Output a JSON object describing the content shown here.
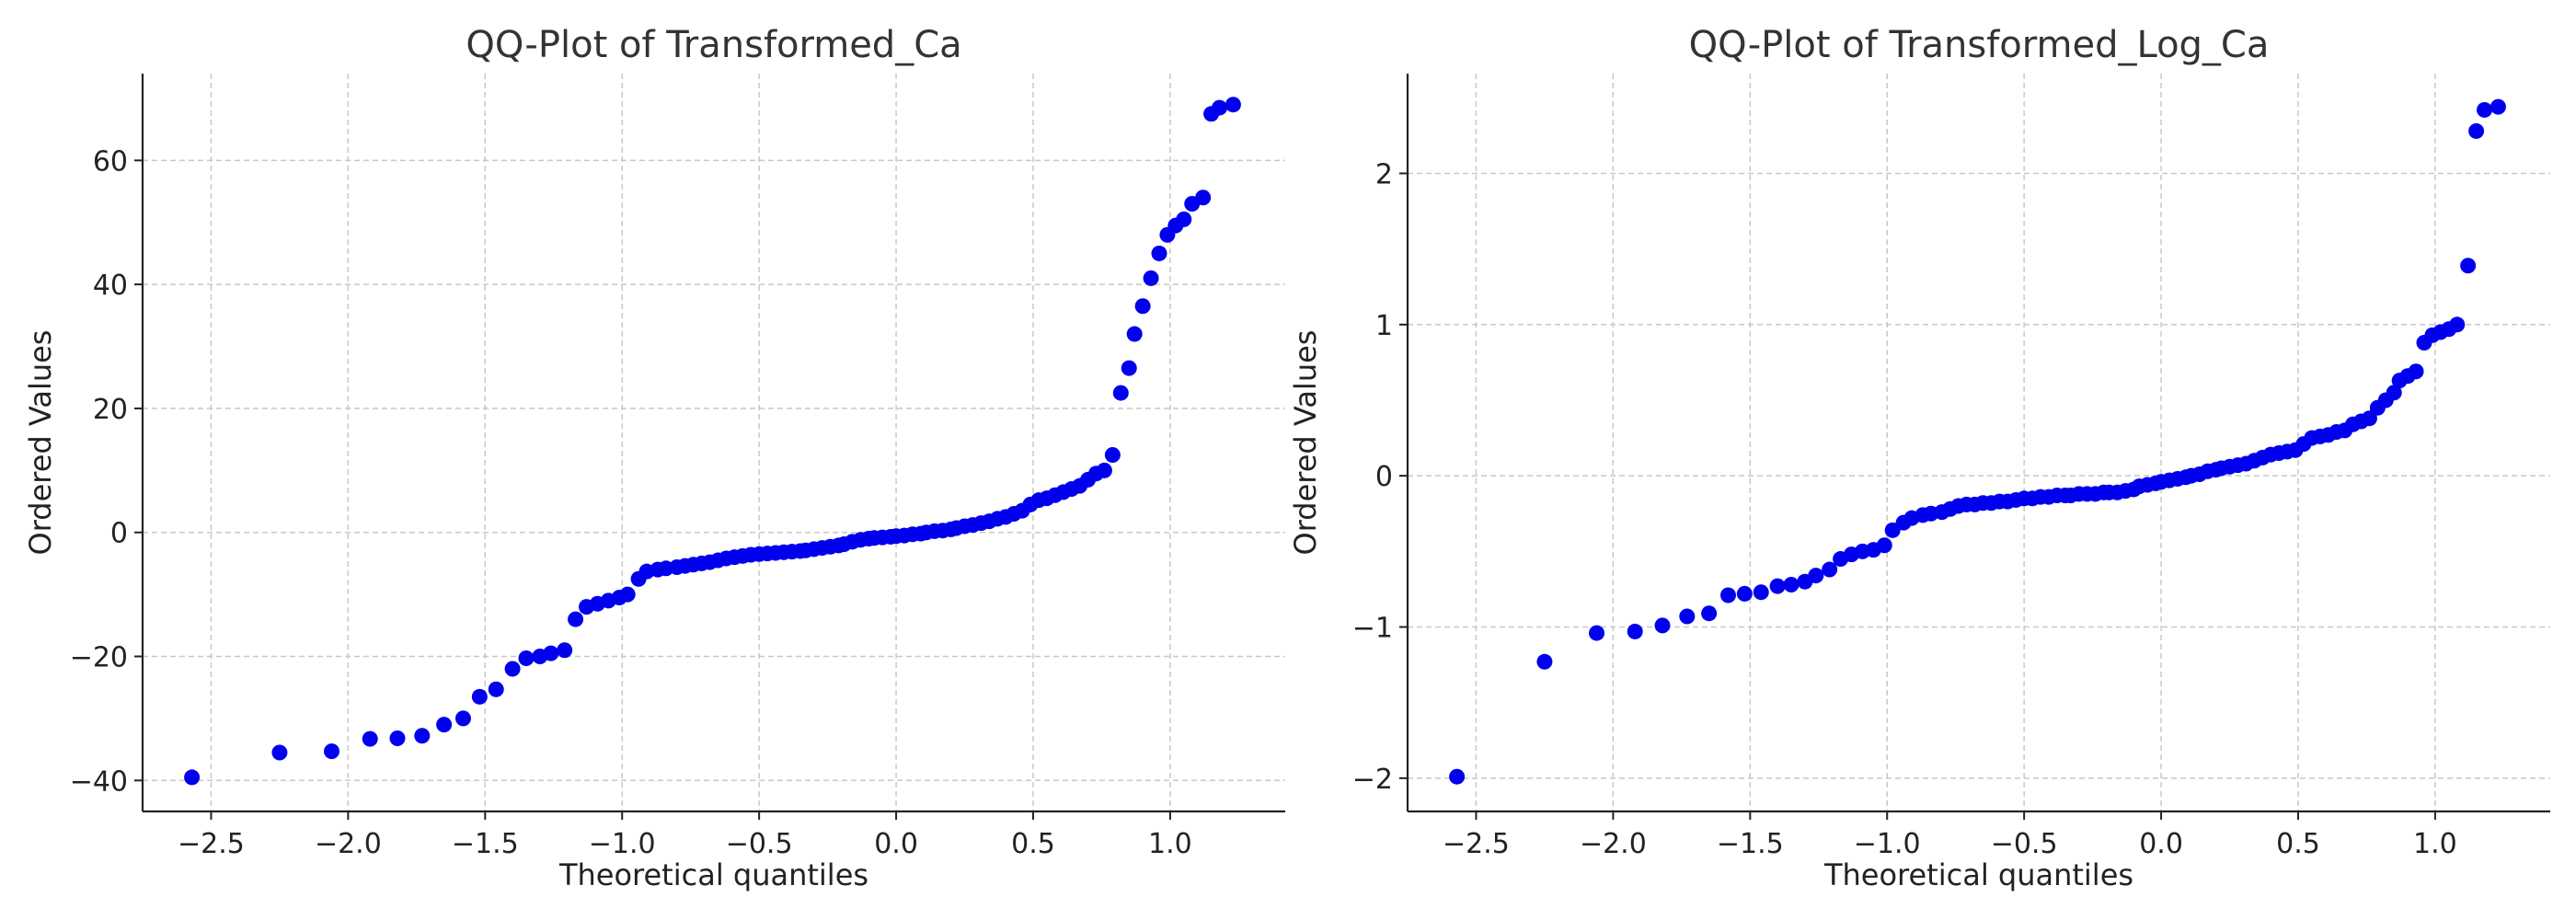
{
  "colors": {
    "points": "#0000ee"
  },
  "chart_data": [
    {
      "type": "scatter",
      "title": "QQ-Plot of Transformed_Ca",
      "xlabel": "Theoretical quantiles",
      "ylabel": "Ordered Values",
      "xlim": [
        -2.75,
        1.42
      ],
      "ylim": [
        -45,
        74
      ],
      "xticks": [
        -2.5,
        -2.0,
        -1.5,
        -1.0,
        -0.5,
        0.0,
        0.5,
        1.0
      ],
      "xtick_labels": [
        "−2.5",
        "−2.0",
        "−1.5",
        "−1.0",
        "−0.5",
        "0.0",
        "0.5",
        "1.0"
      ],
      "yticks": [
        -40,
        -20,
        0,
        20,
        40,
        60
      ],
      "ytick_labels": [
        "−40",
        "−20",
        "0",
        "20",
        "40",
        "60"
      ],
      "grid": true,
      "x": [
        -2.57,
        -2.25,
        -2.06,
        -1.92,
        -1.82,
        -1.73,
        -1.65,
        -1.58,
        -1.52,
        -1.46,
        -1.4,
        -1.35,
        -1.3,
        -1.26,
        -1.21,
        -1.17,
        -1.13,
        -1.09,
        -1.05,
        -1.01,
        -0.98,
        -0.94,
        -0.91,
        -0.87,
        -0.84,
        -0.8,
        -0.77,
        -0.74,
        -0.71,
        -0.68,
        -0.65,
        -0.62,
        -0.59,
        -0.56,
        -0.53,
        -0.5,
        -0.47,
        -0.44,
        -0.41,
        -0.38,
        -0.35,
        -0.33,
        -0.3,
        -0.27,
        -0.24,
        -0.21,
        -0.19,
        -0.16,
        -0.13,
        -0.1,
        -0.08,
        -0.05,
        -0.02,
        0.0,
        0.03,
        0.06,
        0.09,
        0.11,
        0.14,
        0.17,
        0.2,
        0.22,
        0.25,
        0.28,
        0.31,
        0.34,
        0.37,
        0.4,
        0.43,
        0.46,
        0.49,
        0.52,
        0.55,
        0.58,
        0.61,
        0.64,
        0.67,
        0.7,
        0.73,
        0.76,
        0.79,
        0.82,
        0.85,
        0.87,
        0.9,
        0.93,
        0.96,
        0.99,
        1.02,
        1.05,
        1.08,
        1.12,
        1.15,
        1.18,
        1.23
      ],
      "y": [
        -39.5,
        -35.5,
        -35.3,
        -33.3,
        -33.2,
        -32.8,
        -31.0,
        -30.0,
        -26.5,
        -25.3,
        -22.0,
        -20.3,
        -20.0,
        -19.5,
        -19.0,
        -14.0,
        -12.0,
        -11.5,
        -11.0,
        -10.5,
        -10.0,
        -7.5,
        -6.3,
        -6.0,
        -5.8,
        -5.6,
        -5.4,
        -5.2,
        -5.0,
        -4.8,
        -4.5,
        -4.2,
        -4.0,
        -3.8,
        -3.6,
        -3.5,
        -3.4,
        -3.3,
        -3.2,
        -3.1,
        -3.0,
        -2.9,
        -2.7,
        -2.5,
        -2.3,
        -2.1,
        -1.9,
        -1.5,
        -1.2,
        -1.0,
        -0.9,
        -0.8,
        -0.7,
        -0.6,
        -0.5,
        -0.3,
        -0.2,
        0.0,
        0.2,
        0.3,
        0.5,
        0.7,
        1.0,
        1.2,
        1.5,
        1.8,
        2.2,
        2.5,
        3.0,
        3.5,
        4.5,
        5.2,
        5.5,
        6.0,
        6.5,
        7.0,
        7.5,
        8.5,
        9.5,
        10.0,
        12.5,
        22.5,
        26.5,
        32.0,
        36.5,
        41.0,
        45.0,
        48.0,
        49.5,
        50.5,
        53.0,
        54.0,
        67.5,
        68.5,
        69.0
      ]
    },
    {
      "type": "scatter",
      "title": "QQ-Plot of Transformed_Log_Ca",
      "xlabel": "Theoretical quantiles",
      "ylabel": "Ordered Values",
      "xlim": [
        -2.75,
        1.42
      ],
      "ylim": [
        -2.22,
        2.66
      ],
      "xticks": [
        -2.5,
        -2.0,
        -1.5,
        -1.0,
        -0.5,
        0.0,
        0.5,
        1.0
      ],
      "xtick_labels": [
        "−2.5",
        "−2.0",
        "−1.5",
        "−1.0",
        "−0.5",
        "0.0",
        "0.5",
        "1.0"
      ],
      "yticks": [
        -2,
        -1,
        0,
        1,
        2
      ],
      "ytick_labels": [
        "−2",
        "−1",
        "0",
        "1",
        "2"
      ],
      "grid": true,
      "x": [
        -2.57,
        -2.25,
        -2.06,
        -1.92,
        -1.82,
        -1.73,
        -1.65,
        -1.58,
        -1.52,
        -1.46,
        -1.4,
        -1.35,
        -1.3,
        -1.26,
        -1.21,
        -1.17,
        -1.13,
        -1.09,
        -1.05,
        -1.01,
        -0.98,
        -0.94,
        -0.91,
        -0.87,
        -0.84,
        -0.8,
        -0.77,
        -0.74,
        -0.71,
        -0.68,
        -0.65,
        -0.62,
        -0.59,
        -0.56,
        -0.53,
        -0.5,
        -0.47,
        -0.44,
        -0.41,
        -0.38,
        -0.35,
        -0.33,
        -0.3,
        -0.27,
        -0.24,
        -0.21,
        -0.19,
        -0.16,
        -0.13,
        -0.1,
        -0.08,
        -0.05,
        -0.02,
        0.0,
        0.03,
        0.06,
        0.09,
        0.11,
        0.14,
        0.17,
        0.2,
        0.22,
        0.25,
        0.28,
        0.31,
        0.34,
        0.37,
        0.4,
        0.43,
        0.46,
        0.49,
        0.52,
        0.55,
        0.58,
        0.61,
        0.64,
        0.67,
        0.7,
        0.73,
        0.76,
        0.79,
        0.82,
        0.85,
        0.87,
        0.9,
        0.93,
        0.96,
        0.99,
        1.02,
        1.05,
        1.08,
        1.12,
        1.15,
        1.18,
        1.23
      ],
      "y": [
        -1.99,
        -1.23,
        -1.04,
        -1.03,
        -0.99,
        -0.93,
        -0.91,
        -0.79,
        -0.78,
        -0.77,
        -0.73,
        -0.72,
        -0.7,
        -0.66,
        -0.62,
        -0.55,
        -0.52,
        -0.5,
        -0.49,
        -0.46,
        -0.36,
        -0.31,
        -0.28,
        -0.26,
        -0.25,
        -0.24,
        -0.22,
        -0.2,
        -0.19,
        -0.19,
        -0.18,
        -0.18,
        -0.17,
        -0.17,
        -0.16,
        -0.15,
        -0.15,
        -0.14,
        -0.14,
        -0.13,
        -0.13,
        -0.13,
        -0.12,
        -0.12,
        -0.12,
        -0.11,
        -0.11,
        -0.11,
        -0.1,
        -0.09,
        -0.07,
        -0.06,
        -0.05,
        -0.04,
        -0.03,
        -0.02,
        -0.01,
        0.0,
        0.01,
        0.03,
        0.04,
        0.05,
        0.06,
        0.07,
        0.08,
        0.1,
        0.12,
        0.14,
        0.15,
        0.16,
        0.17,
        0.21,
        0.25,
        0.26,
        0.27,
        0.29,
        0.3,
        0.34,
        0.36,
        0.38,
        0.45,
        0.5,
        0.55,
        0.63,
        0.66,
        0.69,
        0.88,
        0.93,
        0.95,
        0.97,
        1.0,
        1.39,
        2.28,
        2.42,
        2.44
      ]
    }
  ]
}
